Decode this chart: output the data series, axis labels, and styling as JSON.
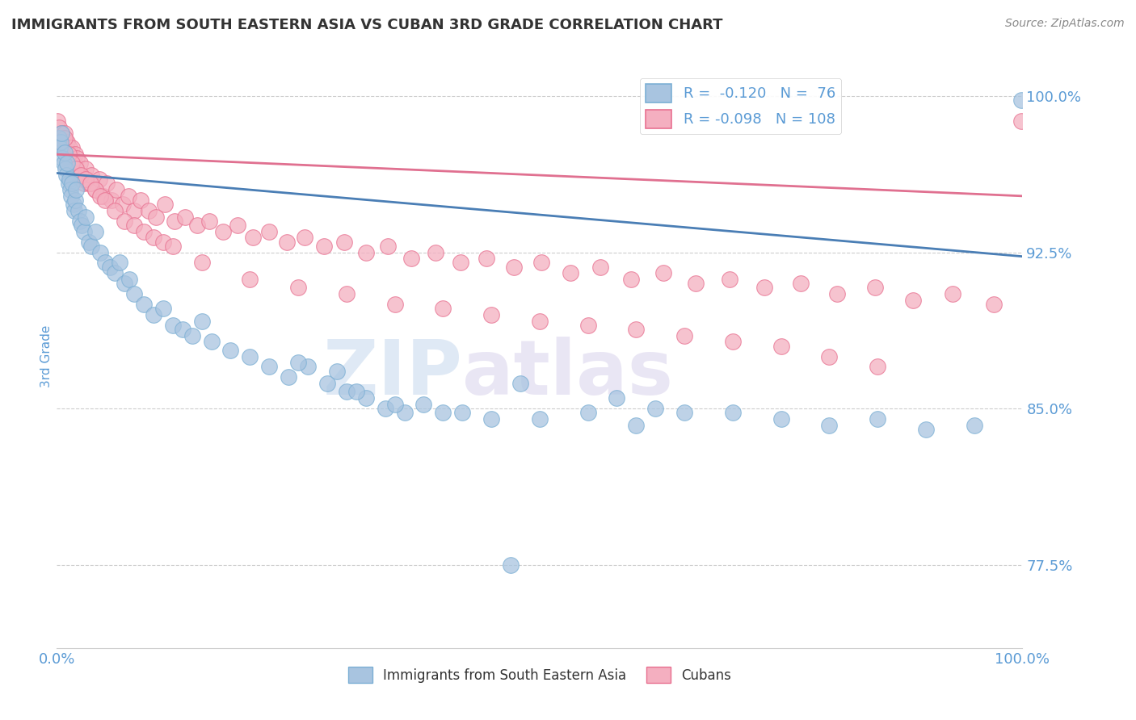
{
  "title": "IMMIGRANTS FROM SOUTH EASTERN ASIA VS CUBAN 3RD GRADE CORRELATION CHART",
  "source": "Source: ZipAtlas.com",
  "ylabel": "3rd Grade",
  "xlim": [
    0.0,
    1.0
  ],
  "ylim": [
    0.735,
    1.015
  ],
  "yticks": [
    0.775,
    0.85,
    0.925,
    1.0
  ],
  "ytick_labels": [
    "77.5%",
    "85.0%",
    "92.5%",
    "100.0%"
  ],
  "xticks": [
    0.0,
    1.0
  ],
  "xtick_labels": [
    "0.0%",
    "100.0%"
  ],
  "blue_R": -0.12,
  "blue_N": 76,
  "pink_R": -0.098,
  "pink_N": 108,
  "blue_color": "#a8c4e0",
  "pink_color": "#f4afc0",
  "blue_edge_color": "#7bafd4",
  "pink_edge_color": "#e87090",
  "blue_line_color": "#4a7eb5",
  "pink_line_color": "#e07090",
  "title_color": "#333333",
  "tick_color": "#5b9bd5",
  "grid_color": "#cccccc",
  "background_color": "#ffffff",
  "watermark_zip": "ZIP",
  "watermark_atlas": "atlas",
  "legend_blue_label": "Immigrants from South Eastern Asia",
  "legend_pink_label": "Cubans",
  "blue_line_x": [
    0.0,
    1.0
  ],
  "blue_line_y": [
    0.963,
    0.923
  ],
  "pink_line_x": [
    0.0,
    1.0
  ],
  "pink_line_y": [
    0.972,
    0.952
  ],
  "blue_x": [
    0.002,
    0.003,
    0.004,
    0.005,
    0.006,
    0.007,
    0.008,
    0.009,
    0.01,
    0.011,
    0.012,
    0.013,
    0.014,
    0.015,
    0.016,
    0.017,
    0.018,
    0.019,
    0.02,
    0.022,
    0.024,
    0.026,
    0.028,
    0.03,
    0.033,
    0.036,
    0.04,
    0.045,
    0.05,
    0.055,
    0.06,
    0.065,
    0.07,
    0.075,
    0.08,
    0.09,
    0.1,
    0.11,
    0.12,
    0.13,
    0.14,
    0.15,
    0.16,
    0.18,
    0.2,
    0.22,
    0.24,
    0.26,
    0.28,
    0.3,
    0.32,
    0.34,
    0.36,
    0.38,
    0.4,
    0.45,
    0.5,
    0.55,
    0.6,
    0.65,
    0.7,
    0.75,
    0.8,
    0.85,
    0.9,
    0.95,
    0.999,
    0.25,
    0.29,
    0.31,
    0.35,
    0.42,
    0.48,
    0.58,
    0.62,
    0.47
  ],
  "blue_y": [
    0.98,
    0.975,
    0.978,
    0.982,
    0.97,
    0.968,
    0.973,
    0.965,
    0.962,
    0.968,
    0.958,
    0.96,
    0.955,
    0.952,
    0.958,
    0.948,
    0.945,
    0.95,
    0.955,
    0.945,
    0.94,
    0.938,
    0.935,
    0.942,
    0.93,
    0.928,
    0.935,
    0.925,
    0.92,
    0.918,
    0.915,
    0.92,
    0.91,
    0.912,
    0.905,
    0.9,
    0.895,
    0.898,
    0.89,
    0.888,
    0.885,
    0.892,
    0.882,
    0.878,
    0.875,
    0.87,
    0.865,
    0.87,
    0.862,
    0.858,
    0.855,
    0.85,
    0.848,
    0.852,
    0.848,
    0.845,
    0.845,
    0.848,
    0.842,
    0.848,
    0.848,
    0.845,
    0.842,
    0.845,
    0.84,
    0.842,
    0.998,
    0.872,
    0.868,
    0.858,
    0.852,
    0.848,
    0.862,
    0.855,
    0.85,
    0.775
  ],
  "pink_x": [
    0.001,
    0.002,
    0.003,
    0.004,
    0.005,
    0.006,
    0.007,
    0.008,
    0.009,
    0.01,
    0.011,
    0.012,
    0.013,
    0.014,
    0.015,
    0.016,
    0.017,
    0.018,
    0.019,
    0.02,
    0.021,
    0.022,
    0.024,
    0.026,
    0.028,
    0.03,
    0.033,
    0.036,
    0.04,
    0.044,
    0.048,
    0.052,
    0.057,
    0.062,
    0.068,
    0.074,
    0.08,
    0.087,
    0.095,
    0.103,
    0.112,
    0.122,
    0.133,
    0.145,
    0.158,
    0.172,
    0.187,
    0.203,
    0.22,
    0.238,
    0.257,
    0.277,
    0.298,
    0.32,
    0.343,
    0.367,
    0.392,
    0.418,
    0.445,
    0.473,
    0.502,
    0.532,
    0.563,
    0.595,
    0.628,
    0.662,
    0.697,
    0.733,
    0.77,
    0.808,
    0.847,
    0.887,
    0.928,
    0.97,
    0.999,
    0.005,
    0.008,
    0.012,
    0.016,
    0.02,
    0.025,
    0.03,
    0.035,
    0.04,
    0.045,
    0.05,
    0.06,
    0.07,
    0.08,
    0.09,
    0.1,
    0.11,
    0.12,
    0.15,
    0.2,
    0.25,
    0.3,
    0.35,
    0.4,
    0.45,
    0.5,
    0.55,
    0.6,
    0.65,
    0.7,
    0.75,
    0.8,
    0.85
  ],
  "pink_y": [
    0.988,
    0.985,
    0.98,
    0.978,
    0.982,
    0.975,
    0.978,
    0.982,
    0.975,
    0.972,
    0.978,
    0.97,
    0.975,
    0.968,
    0.972,
    0.975,
    0.965,
    0.968,
    0.972,
    0.965,
    0.97,
    0.962,
    0.968,
    0.96,
    0.958,
    0.965,
    0.958,
    0.962,
    0.955,
    0.96,
    0.952,
    0.958,
    0.95,
    0.955,
    0.948,
    0.952,
    0.945,
    0.95,
    0.945,
    0.942,
    0.948,
    0.94,
    0.942,
    0.938,
    0.94,
    0.935,
    0.938,
    0.932,
    0.935,
    0.93,
    0.932,
    0.928,
    0.93,
    0.925,
    0.928,
    0.922,
    0.925,
    0.92,
    0.922,
    0.918,
    0.92,
    0.915,
    0.918,
    0.912,
    0.915,
    0.91,
    0.912,
    0.908,
    0.91,
    0.905,
    0.908,
    0.902,
    0.905,
    0.9,
    0.988,
    0.975,
    0.98,
    0.972,
    0.968,
    0.965,
    0.962,
    0.96,
    0.958,
    0.955,
    0.952,
    0.95,
    0.945,
    0.94,
    0.938,
    0.935,
    0.932,
    0.93,
    0.928,
    0.92,
    0.912,
    0.908,
    0.905,
    0.9,
    0.898,
    0.895,
    0.892,
    0.89,
    0.888,
    0.885,
    0.882,
    0.88,
    0.875,
    0.87
  ]
}
